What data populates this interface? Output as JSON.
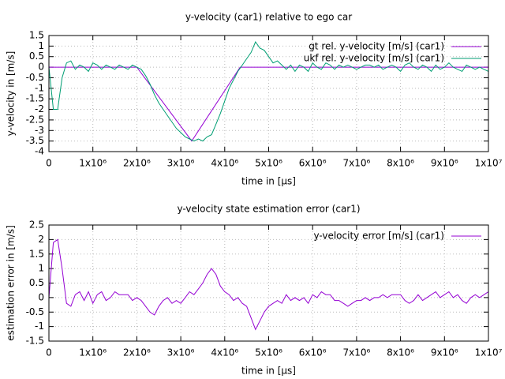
{
  "chart_data": [
    {
      "type": "line",
      "title": "y-velocity (car1) relative to ego car",
      "x_label": "time in [µs]",
      "y_label": "y-velocity in [m/s]",
      "xlim": [
        0,
        10000000
      ],
      "xticks": [
        0,
        {
          "value": 1000000,
          "label": "1x10⁶"
        },
        {
          "value": 2000000,
          "label": "2x10⁶"
        },
        {
          "value": 3000000,
          "label": "3x10⁶"
        },
        {
          "value": 4000000,
          "label": "4x10⁶"
        },
        {
          "value": 5000000,
          "label": "5x10⁶"
        },
        {
          "value": 6000000,
          "label": "6x10⁶"
        },
        {
          "value": 7000000,
          "label": "7x10⁶"
        },
        {
          "value": 8000000,
          "label": "8x10⁶"
        },
        {
          "value": 9000000,
          "label": "9x10⁶"
        },
        {
          "value": 10000000,
          "label": "1x10⁷"
        }
      ],
      "ylim": [
        -4,
        1.5
      ],
      "yticks": [
        1.5,
        1,
        0.5,
        0,
        -0.5,
        -1,
        -1.5,
        -2,
        -2.5,
        -3,
        -3.5,
        -4
      ],
      "grid": true,
      "legend": "top-right",
      "series": [
        {
          "name": "gt rel. y-velocity [m/s] (car1)",
          "color": "#9400d3",
          "x": [
            0,
            2000000,
            3250000,
            4350000,
            10000000
          ],
          "values": [
            0,
            0,
            -3.5,
            0,
            0
          ]
        },
        {
          "name": "ukf rel. y-velocity [m/s] (car1)",
          "color": "#009e73",
          "x": [
            0,
            100000,
            200000,
            300000,
            400000,
            500000,
            600000,
            700000,
            800000,
            900000,
            1000000,
            1100000,
            1200000,
            1300000,
            1400000,
            1500000,
            1600000,
            1700000,
            1800000,
            1900000,
            2000000,
            2100000,
            2200000,
            2300000,
            2400000,
            2500000,
            2600000,
            2700000,
            2800000,
            2900000,
            3000000,
            3100000,
            3200000,
            3300000,
            3400000,
            3500000,
            3600000,
            3700000,
            3800000,
            3900000,
            4000000,
            4100000,
            4200000,
            4300000,
            4400000,
            4500000,
            4600000,
            4700000,
            4800000,
            4900000,
            5000000,
            5100000,
            5200000,
            5300000,
            5400000,
            5500000,
            5600000,
            5700000,
            5800000,
            5900000,
            6000000,
            6100000,
            6200000,
            6300000,
            6400000,
            6500000,
            6600000,
            6700000,
            6800000,
            6900000,
            7000000,
            7100000,
            7200000,
            7300000,
            7400000,
            7500000,
            7600000,
            7700000,
            7800000,
            7900000,
            8000000,
            8100000,
            8200000,
            8300000,
            8400000,
            8500000,
            8600000,
            8700000,
            8800000,
            8900000,
            9000000,
            9100000,
            9200000,
            9300000,
            9400000,
            9500000,
            9600000,
            9700000,
            9800000,
            9900000,
            10000000
          ],
          "values": [
            0,
            -2,
            -2,
            -0.5,
            0.2,
            0.3,
            -0.1,
            0.1,
            0,
            -0.2,
            0.2,
            0.1,
            -0.1,
            0.1,
            0,
            -0.1,
            0.1,
            0,
            -0.1,
            0.1,
            0,
            -0.1,
            -0.4,
            -0.8,
            -1.3,
            -1.7,
            -2.0,
            -2.3,
            -2.6,
            -2.9,
            -3.1,
            -3.3,
            -3.4,
            -3.5,
            -3.4,
            -3.5,
            -3.3,
            -3.2,
            -2.7,
            -2.2,
            -1.6,
            -1.0,
            -0.6,
            -0.2,
            0.1,
            0.4,
            0.7,
            1.2,
            0.9,
            0.8,
            0.5,
            0.2,
            0.3,
            0.1,
            -0.1,
            0.1,
            -0.2,
            0.1,
            0,
            -0.2,
            0.2,
            0,
            -0.1,
            0.2,
            0.1,
            -0.1,
            0.1,
            0,
            0.1,
            0,
            -0.1,
            0,
            0.1,
            0.1,
            0,
            0.1,
            -0.1,
            0,
            0.1,
            0,
            -0.2,
            0.1,
            0.2,
            0,
            -0.1,
            0.1,
            0,
            -0.2,
            0.1,
            -0.1,
            0,
            0.2,
            0,
            -0.1,
            -0.2,
            0.1,
            0,
            -0.1,
            0,
            -0.1,
            -0.2
          ]
        }
      ]
    },
    {
      "type": "line",
      "title": "y-velocity state estimation error (car1)",
      "x_label": "time in [µs]",
      "y_label": "estimation error in [m/s]",
      "xlim": [
        0,
        10000000
      ],
      "xticks": [
        0,
        {
          "value": 1000000,
          "label": "1x10⁶"
        },
        {
          "value": 2000000,
          "label": "2x10⁶"
        },
        {
          "value": 3000000,
          "label": "3x10⁶"
        },
        {
          "value": 4000000,
          "label": "4x10⁶"
        },
        {
          "value": 5000000,
          "label": "5x10⁶"
        },
        {
          "value": 6000000,
          "label": "6x10⁶"
        },
        {
          "value": 7000000,
          "label": "7x10⁶"
        },
        {
          "value": 8000000,
          "label": "8x10⁶"
        },
        {
          "value": 9000000,
          "label": "9x10⁶"
        },
        {
          "value": 10000000,
          "label": "1x10⁷"
        }
      ],
      "ylim": [
        -1.5,
        2.5
      ],
      "yticks": [
        2.5,
        2,
        1.5,
        1,
        0.5,
        0,
        -0.5,
        -1,
        -1.5
      ],
      "grid": true,
      "legend": "top-right",
      "series": [
        {
          "name": "y-velocity error [m/s] (car1)",
          "color": "#9400d3",
          "x": [
            0,
            100000,
            200000,
            300000,
            400000,
            500000,
            600000,
            700000,
            800000,
            900000,
            1000000,
            1100000,
            1200000,
            1300000,
            1400000,
            1500000,
            1600000,
            1700000,
            1800000,
            1900000,
            2000000,
            2100000,
            2200000,
            2300000,
            2400000,
            2500000,
            2600000,
            2700000,
            2800000,
            2900000,
            3000000,
            3100000,
            3200000,
            3300000,
            3400000,
            3500000,
            3600000,
            3700000,
            3800000,
            3900000,
            4000000,
            4100000,
            4200000,
            4300000,
            4400000,
            4500000,
            4600000,
            4700000,
            4800000,
            4900000,
            5000000,
            5100000,
            5200000,
            5300000,
            5400000,
            5500000,
            5600000,
            5700000,
            5800000,
            5900000,
            6000000,
            6100000,
            6200000,
            6300000,
            6400000,
            6500000,
            6600000,
            6700000,
            6800000,
            6900000,
            7000000,
            7100000,
            7200000,
            7300000,
            7400000,
            7500000,
            7600000,
            7700000,
            7800000,
            7900000,
            8000000,
            8100000,
            8200000,
            8300000,
            8400000,
            8500000,
            8600000,
            8700000,
            8800000,
            8900000,
            9000000,
            9100000,
            9200000,
            9300000,
            9400000,
            9500000,
            9600000,
            9700000,
            9800000,
            9900000,
            10000000
          ],
          "values": [
            0,
            1.9,
            2.0,
            1.0,
            -0.2,
            -0.3,
            0.1,
            0.2,
            -0.1,
            0.2,
            -0.2,
            0.1,
            0.2,
            -0.1,
            0,
            0.2,
            0.1,
            0.1,
            0.1,
            -0.1,
            0,
            -0.1,
            -0.3,
            -0.5,
            -0.6,
            -0.3,
            -0.1,
            0,
            -0.2,
            -0.1,
            -0.2,
            0,
            0.2,
            0.1,
            0.3,
            0.5,
            0.8,
            1.0,
            0.8,
            0.4,
            0.2,
            0.1,
            -0.1,
            0,
            -0.2,
            -0.3,
            -0.7,
            -1.1,
            -0.8,
            -0.5,
            -0.3,
            -0.2,
            -0.1,
            -0.2,
            0.1,
            -0.1,
            0,
            -0.1,
            0,
            -0.2,
            0.1,
            0,
            0.2,
            0.1,
            0.1,
            -0.1,
            -0.1,
            -0.2,
            -0.3,
            -0.2,
            -0.1,
            -0.1,
            0,
            -0.1,
            0,
            0,
            0.1,
            0,
            0.1,
            0.1,
            0.1,
            -0.1,
            -0.2,
            -0.1,
            0.1,
            -0.1,
            0,
            0.1,
            0.2,
            0,
            0.1,
            0.2,
            0,
            0.1,
            -0.1,
            -0.2,
            0,
            0.1,
            0,
            0.1,
            0.2
          ]
        }
      ]
    }
  ]
}
